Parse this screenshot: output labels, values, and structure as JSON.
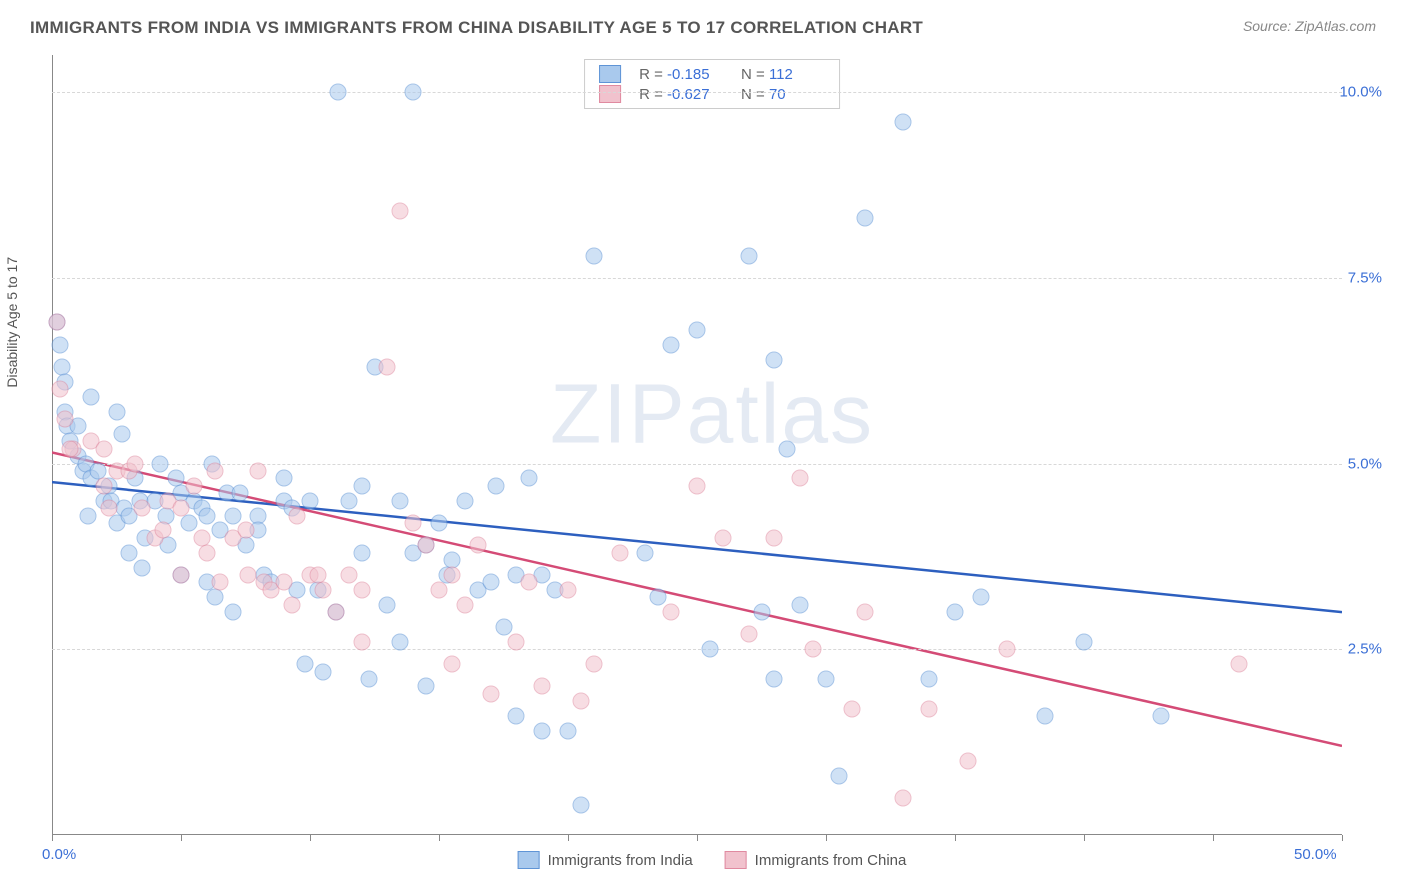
{
  "header": {
    "title": "IMMIGRANTS FROM INDIA VS IMMIGRANTS FROM CHINA DISABILITY AGE 5 TO 17 CORRELATION CHART",
    "source": "Source: ZipAtlas.com"
  },
  "y_axis_label": "Disability Age 5 to 17",
  "watermark_bold": "ZIP",
  "watermark_thin": "atlas",
  "chart": {
    "type": "scatter",
    "xlim": [
      0,
      50
    ],
    "ylim": [
      0,
      10.5
    ],
    "x_ticks": [
      0,
      5,
      10,
      15,
      20,
      25,
      30,
      35,
      40,
      45,
      50
    ],
    "x_tick_labels": {
      "0": "0.0%",
      "50": "50.0%"
    },
    "y_gridlines": [
      2.5,
      5.0,
      7.5,
      10.0
    ],
    "y_tick_labels": {
      "2.5": "2.5%",
      "5.0": "5.0%",
      "7.5": "7.5%",
      "10.0": "10.0%"
    },
    "background_color": "#ffffff",
    "grid_color": "#d8d8d8",
    "marker_radius": 8.5,
    "marker_opacity": 0.55,
    "series": [
      {
        "name": "Immigrants from India",
        "fill": "#a9c9ed",
        "stroke": "#5f94d6",
        "trend_color": "#2d5fbf",
        "trend_width": 2.5,
        "R": "-0.185",
        "N": "112",
        "trend": {
          "x1": 0,
          "y1": 4.75,
          "x2": 50,
          "y2": 3.0
        },
        "points": [
          [
            0.2,
            6.9
          ],
          [
            0.3,
            6.6
          ],
          [
            0.4,
            6.3
          ],
          [
            0.5,
            6.1
          ],
          [
            0.5,
            5.7
          ],
          [
            0.6,
            5.5
          ],
          [
            0.7,
            5.3
          ],
          [
            1.0,
            5.5
          ],
          [
            1.0,
            5.1
          ],
          [
            1.2,
            4.9
          ],
          [
            1.3,
            5.0
          ],
          [
            1.4,
            4.3
          ],
          [
            1.5,
            4.8
          ],
          [
            1.8,
            4.9
          ],
          [
            1.5,
            5.9
          ],
          [
            2.0,
            4.5
          ],
          [
            2.2,
            4.7
          ],
          [
            2.3,
            4.5
          ],
          [
            2.5,
            5.7
          ],
          [
            2.5,
            4.2
          ],
          [
            2.8,
            4.4
          ],
          [
            3.0,
            4.3
          ],
          [
            3.0,
            3.8
          ],
          [
            3.2,
            4.8
          ],
          [
            3.4,
            4.5
          ],
          [
            3.6,
            4.0
          ],
          [
            3.5,
            3.6
          ],
          [
            4.0,
            4.5
          ],
          [
            4.2,
            5.0
          ],
          [
            4.4,
            4.3
          ],
          [
            4.5,
            3.9
          ],
          [
            4.8,
            4.8
          ],
          [
            5.0,
            4.6
          ],
          [
            5.0,
            3.5
          ],
          [
            5.3,
            4.2
          ],
          [
            5.5,
            4.5
          ],
          [
            5.8,
            4.4
          ],
          [
            6.0,
            4.3
          ],
          [
            6.0,
            3.4
          ],
          [
            6.3,
            3.2
          ],
          [
            6.5,
            4.1
          ],
          [
            6.8,
            4.6
          ],
          [
            7.0,
            4.3
          ],
          [
            7.0,
            3.0
          ],
          [
            7.3,
            4.6
          ],
          [
            7.5,
            3.9
          ],
          [
            8.0,
            4.3
          ],
          [
            8.0,
            4.1
          ],
          [
            8.2,
            3.5
          ],
          [
            8.5,
            3.4
          ],
          [
            9.0,
            4.8
          ],
          [
            9.0,
            4.5
          ],
          [
            9.3,
            4.4
          ],
          [
            9.5,
            3.3
          ],
          [
            9.8,
            2.3
          ],
          [
            10.0,
            4.5
          ],
          [
            10.3,
            3.3
          ],
          [
            10.5,
            2.2
          ],
          [
            11.0,
            3.0
          ],
          [
            11.1,
            10.0
          ],
          [
            11.5,
            4.5
          ],
          [
            12.0,
            4.7
          ],
          [
            12.0,
            3.8
          ],
          [
            12.3,
            2.1
          ],
          [
            12.5,
            6.3
          ],
          [
            13.0,
            3.1
          ],
          [
            13.5,
            4.5
          ],
          [
            13.5,
            2.6
          ],
          [
            14.0,
            10.0
          ],
          [
            14.0,
            3.8
          ],
          [
            14.5,
            3.9
          ],
          [
            14.5,
            2.0
          ],
          [
            15.0,
            4.2
          ],
          [
            15.3,
            3.5
          ],
          [
            15.5,
            3.7
          ],
          [
            16.0,
            4.5
          ],
          [
            16.5,
            3.3
          ],
          [
            17.0,
            3.4
          ],
          [
            17.2,
            4.7
          ],
          [
            17.5,
            2.8
          ],
          [
            18.0,
            3.5
          ],
          [
            18.0,
            1.6
          ],
          [
            18.5,
            4.8
          ],
          [
            19.0,
            3.5
          ],
          [
            19.0,
            1.4
          ],
          [
            19.5,
            3.3
          ],
          [
            20.0,
            1.4
          ],
          [
            20.5,
            0.4
          ],
          [
            21.0,
            7.8
          ],
          [
            23.0,
            3.8
          ],
          [
            23.5,
            3.2
          ],
          [
            24.0,
            6.6
          ],
          [
            25.0,
            6.8
          ],
          [
            25.5,
            2.5
          ],
          [
            27.0,
            7.8
          ],
          [
            27.5,
            3.0
          ],
          [
            28.0,
            6.4
          ],
          [
            28.0,
            2.1
          ],
          [
            28.5,
            5.2
          ],
          [
            29.0,
            3.1
          ],
          [
            30.0,
            2.1
          ],
          [
            30.5,
            0.8
          ],
          [
            31.5,
            8.3
          ],
          [
            33.0,
            9.6
          ],
          [
            34.0,
            2.1
          ],
          [
            35.0,
            3.0
          ],
          [
            36.0,
            3.2
          ],
          [
            38.5,
            1.6
          ],
          [
            40.0,
            2.6
          ],
          [
            43.0,
            1.6
          ],
          [
            2.7,
            5.4
          ],
          [
            6.2,
            5.0
          ]
        ]
      },
      {
        "name": "Immigrants from China",
        "fill": "#f1c2cd",
        "stroke": "#e08aa0",
        "trend_color": "#d44b76",
        "trend_width": 2.5,
        "R": "-0.627",
        "N": "70",
        "trend": {
          "x1": 0,
          "y1": 5.15,
          "x2": 50,
          "y2": 1.2
        },
        "points": [
          [
            0.2,
            6.9
          ],
          [
            0.3,
            6.0
          ],
          [
            0.5,
            5.6
          ],
          [
            0.8,
            5.2
          ],
          [
            1.5,
            5.3
          ],
          [
            2.0,
            5.2
          ],
          [
            2.0,
            4.7
          ],
          [
            2.2,
            4.4
          ],
          [
            2.5,
            4.9
          ],
          [
            3.0,
            4.9
          ],
          [
            3.2,
            5.0
          ],
          [
            3.5,
            4.4
          ],
          [
            4.0,
            4.0
          ],
          [
            4.3,
            4.1
          ],
          [
            4.5,
            4.5
          ],
          [
            5.0,
            4.4
          ],
          [
            5.0,
            3.5
          ],
          [
            5.5,
            4.7
          ],
          [
            5.8,
            4.0
          ],
          [
            6.0,
            3.8
          ],
          [
            6.3,
            4.9
          ],
          [
            6.5,
            3.4
          ],
          [
            7.0,
            4.0
          ],
          [
            7.5,
            4.1
          ],
          [
            7.6,
            3.5
          ],
          [
            8.0,
            4.9
          ],
          [
            8.2,
            3.4
          ],
          [
            8.5,
            3.3
          ],
          [
            9.0,
            3.4
          ],
          [
            9.3,
            3.1
          ],
          [
            9.5,
            4.3
          ],
          [
            10.0,
            3.5
          ],
          [
            10.3,
            3.5
          ],
          [
            10.5,
            3.3
          ],
          [
            11.0,
            3.0
          ],
          [
            11.5,
            3.5
          ],
          [
            12.0,
            3.3
          ],
          [
            12.0,
            2.6
          ],
          [
            13.0,
            6.3
          ],
          [
            13.5,
            8.4
          ],
          [
            14.0,
            4.2
          ],
          [
            14.5,
            3.9
          ],
          [
            15.0,
            3.3
          ],
          [
            15.5,
            3.5
          ],
          [
            15.5,
            2.3
          ],
          [
            16.0,
            3.1
          ],
          [
            16.5,
            3.9
          ],
          [
            17.0,
            1.9
          ],
          [
            18.0,
            2.6
          ],
          [
            18.5,
            3.4
          ],
          [
            19.0,
            2.0
          ],
          [
            20.0,
            3.3
          ],
          [
            20.5,
            1.8
          ],
          [
            21.0,
            2.3
          ],
          [
            22.0,
            3.8
          ],
          [
            24.0,
            3.0
          ],
          [
            25.0,
            4.7
          ],
          [
            26.0,
            4.0
          ],
          [
            27.0,
            2.7
          ],
          [
            28.0,
            4.0
          ],
          [
            29.0,
            4.8
          ],
          [
            29.5,
            2.5
          ],
          [
            31.0,
            1.7
          ],
          [
            31.5,
            3.0
          ],
          [
            33.0,
            0.5
          ],
          [
            34.0,
            1.7
          ],
          [
            35.5,
            1.0
          ],
          [
            37.0,
            2.5
          ],
          [
            46.0,
            2.3
          ],
          [
            0.7,
            5.2
          ]
        ]
      }
    ]
  }
}
